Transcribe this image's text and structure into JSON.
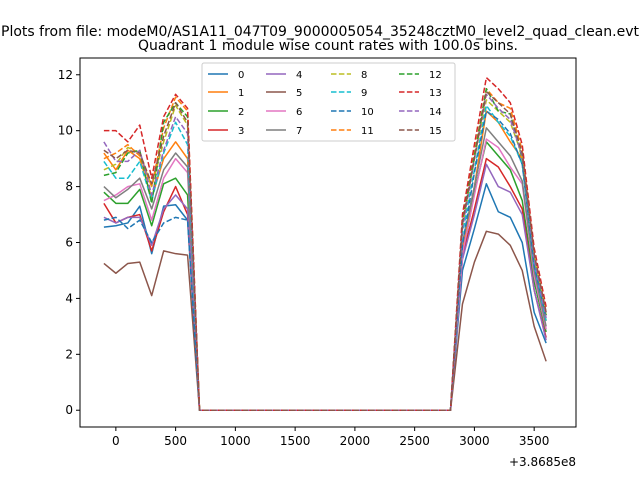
{
  "chart_data": {
    "type": "line",
    "suptitle": "Plots from file: modeM0/AS1A11_047T09_9000005054_35248cztM0_level2_quad_clean.evt",
    "title": "Quadrant 1 module wise count rates with 100.0s bins.",
    "xlabel": "",
    "ylabel": "",
    "x_offset_label": "+3.8685e8",
    "xlim": [
      -300,
      3850
    ],
    "ylim": [
      -0.6,
      12.6
    ],
    "x_ticks": [
      0,
      500,
      1000,
      1500,
      2000,
      2500,
      3000,
      3500
    ],
    "y_ticks": [
      0,
      2,
      4,
      6,
      8,
      10,
      12
    ],
    "grid": false,
    "legend_position": "upper-center",
    "x": [
      -100,
      0,
      100,
      200,
      300,
      400,
      500,
      600,
      700,
      800,
      900,
      1000,
      1100,
      1200,
      1300,
      1400,
      1500,
      1600,
      1700,
      1800,
      1900,
      2000,
      2100,
      2200,
      2300,
      2400,
      2500,
      2600,
      2700,
      2800,
      2900,
      3000,
      3100,
      3200,
      3300,
      3400,
      3500,
      3600
    ],
    "series": [
      {
        "name": "0",
        "color": "#1f77b4",
        "dash": "solid",
        "values": [
          6.55,
          6.6,
          6.7,
          7.3,
          5.6,
          7.3,
          7.35,
          6.8,
          0,
          0,
          0,
          0,
          0,
          0,
          0,
          0,
          0,
          0,
          0,
          0,
          0,
          0,
          0,
          0,
          0,
          0,
          0,
          0,
          0,
          0,
          5.0,
          6.5,
          8.1,
          7.1,
          6.9,
          6.0,
          3.5,
          2.4
        ]
      },
      {
        "name": "1",
        "color": "#ff7f0e",
        "dash": "solid",
        "values": [
          9.2,
          8.6,
          9.3,
          9.0,
          7.6,
          9.0,
          9.6,
          9.0,
          0,
          0,
          0,
          0,
          0,
          0,
          0,
          0,
          0,
          0,
          0,
          0,
          0,
          0,
          0,
          0,
          0,
          0,
          0,
          0,
          0,
          0,
          5.8,
          8.0,
          10.7,
          10.3,
          9.6,
          9.0,
          5.2,
          3.2
        ]
      },
      {
        "name": "2",
        "color": "#2ca02c",
        "dash": "solid",
        "values": [
          7.8,
          7.4,
          7.4,
          7.9,
          6.6,
          8.1,
          8.3,
          7.7,
          0,
          0,
          0,
          0,
          0,
          0,
          0,
          0,
          0,
          0,
          0,
          0,
          0,
          0,
          0,
          0,
          0,
          0,
          0,
          0,
          0,
          0,
          5.5,
          7.8,
          9.6,
          9.1,
          8.6,
          7.5,
          4.6,
          2.8
        ]
      },
      {
        "name": "3",
        "color": "#d62728",
        "dash": "solid",
        "values": [
          7.4,
          6.7,
          6.9,
          7.0,
          5.7,
          7.1,
          8.0,
          7.0,
          0,
          0,
          0,
          0,
          0,
          0,
          0,
          0,
          0,
          0,
          0,
          0,
          0,
          0,
          0,
          0,
          0,
          0,
          0,
          0,
          0,
          0,
          5.5,
          7.2,
          9.0,
          8.7,
          8.0,
          7.2,
          4.3,
          2.6
        ]
      },
      {
        "name": "4",
        "color": "#9467bd",
        "dash": "solid",
        "values": [
          6.9,
          6.7,
          6.9,
          6.9,
          5.9,
          7.2,
          7.7,
          7.2,
          0,
          0,
          0,
          0,
          0,
          0,
          0,
          0,
          0,
          0,
          0,
          0,
          0,
          0,
          0,
          0,
          0,
          0,
          0,
          0,
          0,
          0,
          5.4,
          7.0,
          8.8,
          8.0,
          7.8,
          7.0,
          4.3,
          2.5
        ]
      },
      {
        "name": "5",
        "color": "#8c564b",
        "dash": "solid",
        "values": [
          5.25,
          4.9,
          5.25,
          5.3,
          4.1,
          5.7,
          5.6,
          5.55,
          0,
          0,
          0,
          0,
          0,
          0,
          0,
          0,
          0,
          0,
          0,
          0,
          0,
          0,
          0,
          0,
          0,
          0,
          0,
          0,
          0,
          0,
          3.8,
          5.3,
          6.4,
          6.3,
          5.9,
          5.0,
          3.0,
          1.75
        ]
      },
      {
        "name": "6",
        "color": "#e377c2",
        "dash": "solid",
        "values": [
          7.5,
          7.7,
          8.0,
          8.1,
          6.8,
          8.3,
          9.0,
          8.5,
          0,
          0,
          0,
          0,
          0,
          0,
          0,
          0,
          0,
          0,
          0,
          0,
          0,
          0,
          0,
          0,
          0,
          0,
          0,
          0,
          0,
          0,
          5.6,
          7.7,
          9.7,
          9.4,
          8.7,
          8.1,
          4.8,
          2.9
        ]
      },
      {
        "name": "7",
        "color": "#7f7f7f",
        "dash": "solid",
        "values": [
          8.0,
          7.6,
          7.9,
          8.3,
          7.2,
          8.6,
          9.2,
          8.7,
          0,
          0,
          0,
          0,
          0,
          0,
          0,
          0,
          0,
          0,
          0,
          0,
          0,
          0,
          0,
          0,
          0,
          0,
          0,
          0,
          0,
          0,
          6.0,
          8.0,
          10.1,
          9.6,
          9.1,
          8.2,
          5.0,
          3.0
        ]
      },
      {
        "name": "8",
        "color": "#bcbd22",
        "dash": "dashed",
        "values": [
          8.6,
          8.8,
          9.4,
          9.2,
          8.0,
          9.6,
          10.9,
          10.2,
          0,
          0,
          0,
          0,
          0,
          0,
          0,
          0,
          0,
          0,
          0,
          0,
          0,
          0,
          0,
          0,
          0,
          0,
          0,
          0,
          0,
          0,
          6.5,
          9.0,
          11.1,
          10.7,
          10.3,
          9.1,
          5.5,
          3.4
        ]
      },
      {
        "name": "9",
        "color": "#17becf",
        "dash": "dashed",
        "values": [
          8.9,
          8.3,
          8.3,
          8.9,
          7.5,
          9.2,
          10.3,
          9.5,
          0,
          0,
          0,
          0,
          0,
          0,
          0,
          0,
          0,
          0,
          0,
          0,
          0,
          0,
          0,
          0,
          0,
          0,
          0,
          0,
          0,
          0,
          6.3,
          8.6,
          10.9,
          10.3,
          9.8,
          8.8,
          5.2,
          3.2
        ]
      },
      {
        "name": "10",
        "color": "#1f77b4",
        "dash": "dashed",
        "values": [
          6.8,
          6.9,
          6.5,
          6.8,
          6.0,
          6.7,
          6.9,
          6.8,
          0,
          0,
          0,
          0,
          0,
          0,
          0,
          0,
          0,
          0,
          0,
          0,
          0,
          0,
          0,
          0,
          0,
          0,
          0,
          0,
          0,
          0,
          5.9,
          8.5,
          10.7,
          10.4,
          9.9,
          8.8,
          5.2,
          3.3
        ]
      },
      {
        "name": "11",
        "color": "#ff7f0e",
        "dash": "dashed",
        "values": [
          9.0,
          9.2,
          9.5,
          9.1,
          8.0,
          10.1,
          11.2,
          10.7,
          0,
          0,
          0,
          0,
          0,
          0,
          0,
          0,
          0,
          0,
          0,
          0,
          0,
          0,
          0,
          0,
          0,
          0,
          0,
          0,
          0,
          0,
          6.8,
          9.2,
          11.5,
          11.0,
          10.8,
          9.3,
          5.6,
          3.5
        ]
      },
      {
        "name": "12",
        "color": "#2ca02c",
        "dash": "dashed",
        "values": [
          8.4,
          8.5,
          9.2,
          9.3,
          7.4,
          10.3,
          11.0,
          10.5,
          0,
          0,
          0,
          0,
          0,
          0,
          0,
          0,
          0,
          0,
          0,
          0,
          0,
          0,
          0,
          0,
          0,
          0,
          0,
          0,
          0,
          0,
          6.8,
          9.1,
          11.5,
          10.7,
          10.6,
          9.0,
          5.5,
          3.4
        ]
      },
      {
        "name": "13",
        "color": "#d62728",
        "dash": "dashed",
        "values": [
          10.0,
          10.0,
          9.6,
          10.2,
          8.3,
          10.5,
          11.3,
          10.8,
          0,
          0,
          0,
          0,
          0,
          0,
          0,
          0,
          0,
          0,
          0,
          0,
          0,
          0,
          0,
          0,
          0,
          0,
          0,
          0,
          0,
          0,
          7.0,
          9.5,
          11.9,
          11.5,
          11.0,
          9.5,
          5.8,
          3.7
        ]
      },
      {
        "name": "14",
        "color": "#9467bd",
        "dash": "dashed",
        "values": [
          9.6,
          8.9,
          8.9,
          9.3,
          7.7,
          9.3,
          10.5,
          9.9,
          0,
          0,
          0,
          0,
          0,
          0,
          0,
          0,
          0,
          0,
          0,
          0,
          0,
          0,
          0,
          0,
          0,
          0,
          0,
          0,
          0,
          0,
          6.5,
          9.0,
          11.3,
          10.8,
          10.4,
          9.1,
          5.4,
          3.3
        ]
      },
      {
        "name": "15",
        "color": "#8c564b",
        "dash": "dashed",
        "values": [
          9.3,
          9.0,
          9.3,
          9.2,
          8.1,
          9.8,
          11.0,
          10.3,
          0,
          0,
          0,
          0,
          0,
          0,
          0,
          0,
          0,
          0,
          0,
          0,
          0,
          0,
          0,
          0,
          0,
          0,
          0,
          0,
          0,
          0,
          6.7,
          9.0,
          11.4,
          11.0,
          10.6,
          9.2,
          5.6,
          3.5
        ]
      }
    ]
  }
}
